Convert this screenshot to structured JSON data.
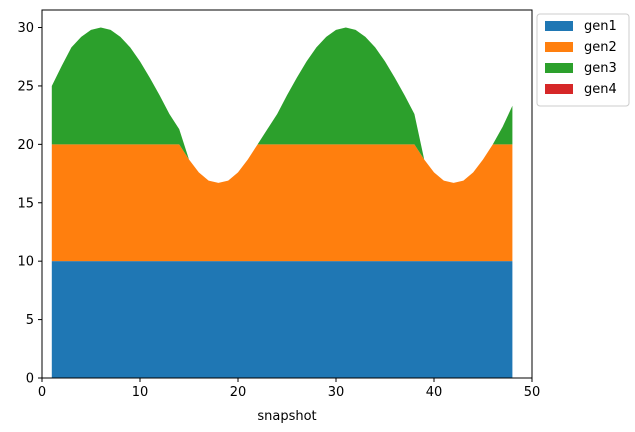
{
  "chart_data": {
    "type": "area",
    "stacked": true,
    "title": "",
    "xlabel": "snapshot",
    "ylabel": "",
    "xlim": [
      0,
      50
    ],
    "ylim": [
      0,
      31.5
    ],
    "xticks": [
      0,
      10,
      20,
      30,
      40,
      50
    ],
    "yticks": [
      0,
      5,
      10,
      15,
      20,
      25,
      30
    ],
    "grid": false,
    "legend_position": "outside-upper-right",
    "x": [
      1,
      2,
      3,
      4,
      5,
      6,
      7,
      8,
      9,
      10,
      11,
      12,
      13,
      14,
      15,
      16,
      17,
      18,
      19,
      20,
      21,
      22,
      23,
      24,
      25,
      26,
      27,
      28,
      29,
      30,
      31,
      32,
      33,
      34,
      35,
      36,
      37,
      38,
      39,
      40,
      41,
      42,
      43,
      44,
      45,
      46,
      47,
      48
    ],
    "series": [
      {
        "name": "gen1",
        "color": "#1f77b4",
        "values": [
          10,
          10,
          10,
          10,
          10,
          10,
          10,
          10,
          10,
          10,
          10,
          10,
          10,
          10,
          10,
          10,
          10,
          10,
          10,
          10,
          10,
          10,
          10,
          10,
          10,
          10,
          10,
          10,
          10,
          10,
          10,
          10,
          10,
          10,
          10,
          10,
          10,
          10,
          10,
          10,
          10,
          10,
          10,
          10,
          10,
          10,
          10,
          10
        ]
      },
      {
        "name": "gen2",
        "color": "#ff7f0e",
        "values": [
          10,
          10,
          10,
          10,
          10,
          10,
          10,
          10,
          10,
          10,
          10,
          10,
          10,
          10,
          8.7,
          7.6,
          6.9,
          6.7,
          6.9,
          7.6,
          8.7,
          10,
          10,
          10,
          10,
          10,
          10,
          10,
          10,
          10,
          10,
          10,
          10,
          10,
          10,
          10,
          10,
          10,
          8.7,
          7.6,
          6.9,
          6.7,
          6.9,
          7.6,
          8.7,
          10,
          10,
          10
        ]
      },
      {
        "name": "gen3",
        "color": "#2ca02c",
        "values": [
          5,
          6.7,
          8.3,
          9.2,
          9.8,
          10,
          9.8,
          9.2,
          8.3,
          7.1,
          5.7,
          4.2,
          2.6,
          1.3,
          0,
          0,
          0,
          0,
          0,
          0,
          0,
          0,
          1.3,
          2.6,
          4.2,
          5.7,
          7.1,
          8.3,
          9.2,
          9.8,
          10,
          9.8,
          9.2,
          8.3,
          7.1,
          5.7,
          4.2,
          2.6,
          0,
          0,
          0,
          0,
          0,
          0,
          0,
          0,
          1.5,
          3.3
        ]
      },
      {
        "name": "gen4",
        "color": "#d62728",
        "values": [
          0,
          0,
          0,
          0,
          0,
          0,
          0,
          0,
          0,
          0,
          0,
          0,
          0,
          0,
          0,
          0,
          0,
          0,
          0,
          0,
          0,
          0,
          0,
          0,
          0,
          0,
          0,
          0,
          0,
          0,
          0,
          0,
          0,
          0,
          0,
          0,
          0,
          0,
          0,
          0,
          0,
          0,
          0,
          0,
          0,
          0,
          0,
          0
        ]
      }
    ]
  }
}
